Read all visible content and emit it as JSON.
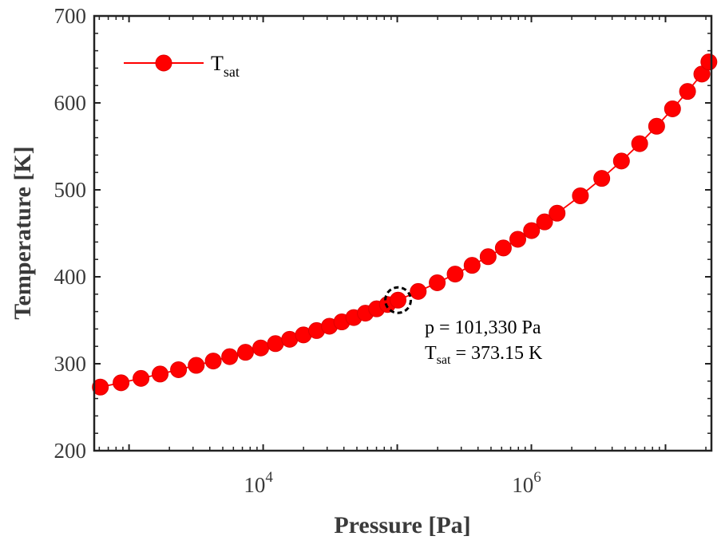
{
  "chart_data": {
    "type": "line",
    "title": "",
    "xlabel": "Pressure [Pa]",
    "ylabel": "Temperature [K]",
    "xscale": "log",
    "xlim": [
      550,
      22000000
    ],
    "ylim": [
      200,
      700
    ],
    "grid": false,
    "legend_position": "top-left",
    "x_ticks": [
      {
        "value": 10000,
        "base": "10",
        "exp": "4"
      },
      {
        "value": 1000000,
        "base": "10",
        "exp": "6"
      }
    ],
    "y_ticks": [
      200,
      300,
      400,
      500,
      600,
      700
    ],
    "series": [
      {
        "name": "T",
        "name_sub": "sat",
        "color": "#ff0000",
        "marker": "circle",
        "x": [
          611,
          872,
          1228,
          1705,
          2339,
          3169,
          4246,
          5628,
          7384,
          9593,
          12350,
          15760,
          19950,
          25040,
          31200,
          38580,
          47390,
          57830,
          70140,
          84550,
          101330,
          143270,
          198530,
          270100,
          361300,
          475800,
          617800,
          791700,
          1002800,
          1254400,
          1554900,
          2319800,
          3346900,
          4692300,
          6416600,
          8587900,
          11284000,
          14601000,
          18666000,
          21060000
        ],
        "y": [
          273.15,
          278.15,
          283.15,
          288.15,
          293.15,
          298.15,
          303.15,
          308.15,
          313.15,
          318.15,
          323.15,
          328.15,
          333.15,
          338.15,
          343.15,
          348.15,
          353.15,
          358.15,
          363.15,
          368.15,
          373.15,
          383.15,
          393.15,
          403.15,
          413.15,
          423.15,
          433.15,
          443.15,
          453.15,
          463.15,
          473.15,
          493.15,
          513.15,
          533.15,
          553.15,
          573.15,
          593.15,
          613.15,
          633.15,
          647.1
        ]
      }
    ],
    "highlight": {
      "x": 101330,
      "y": 373.15
    },
    "annotations": {
      "line1": "p = 101,330 Pa",
      "line2_main": "T",
      "line2_sub": "sat",
      "line2_rest": " = 373.15 K"
    }
  }
}
